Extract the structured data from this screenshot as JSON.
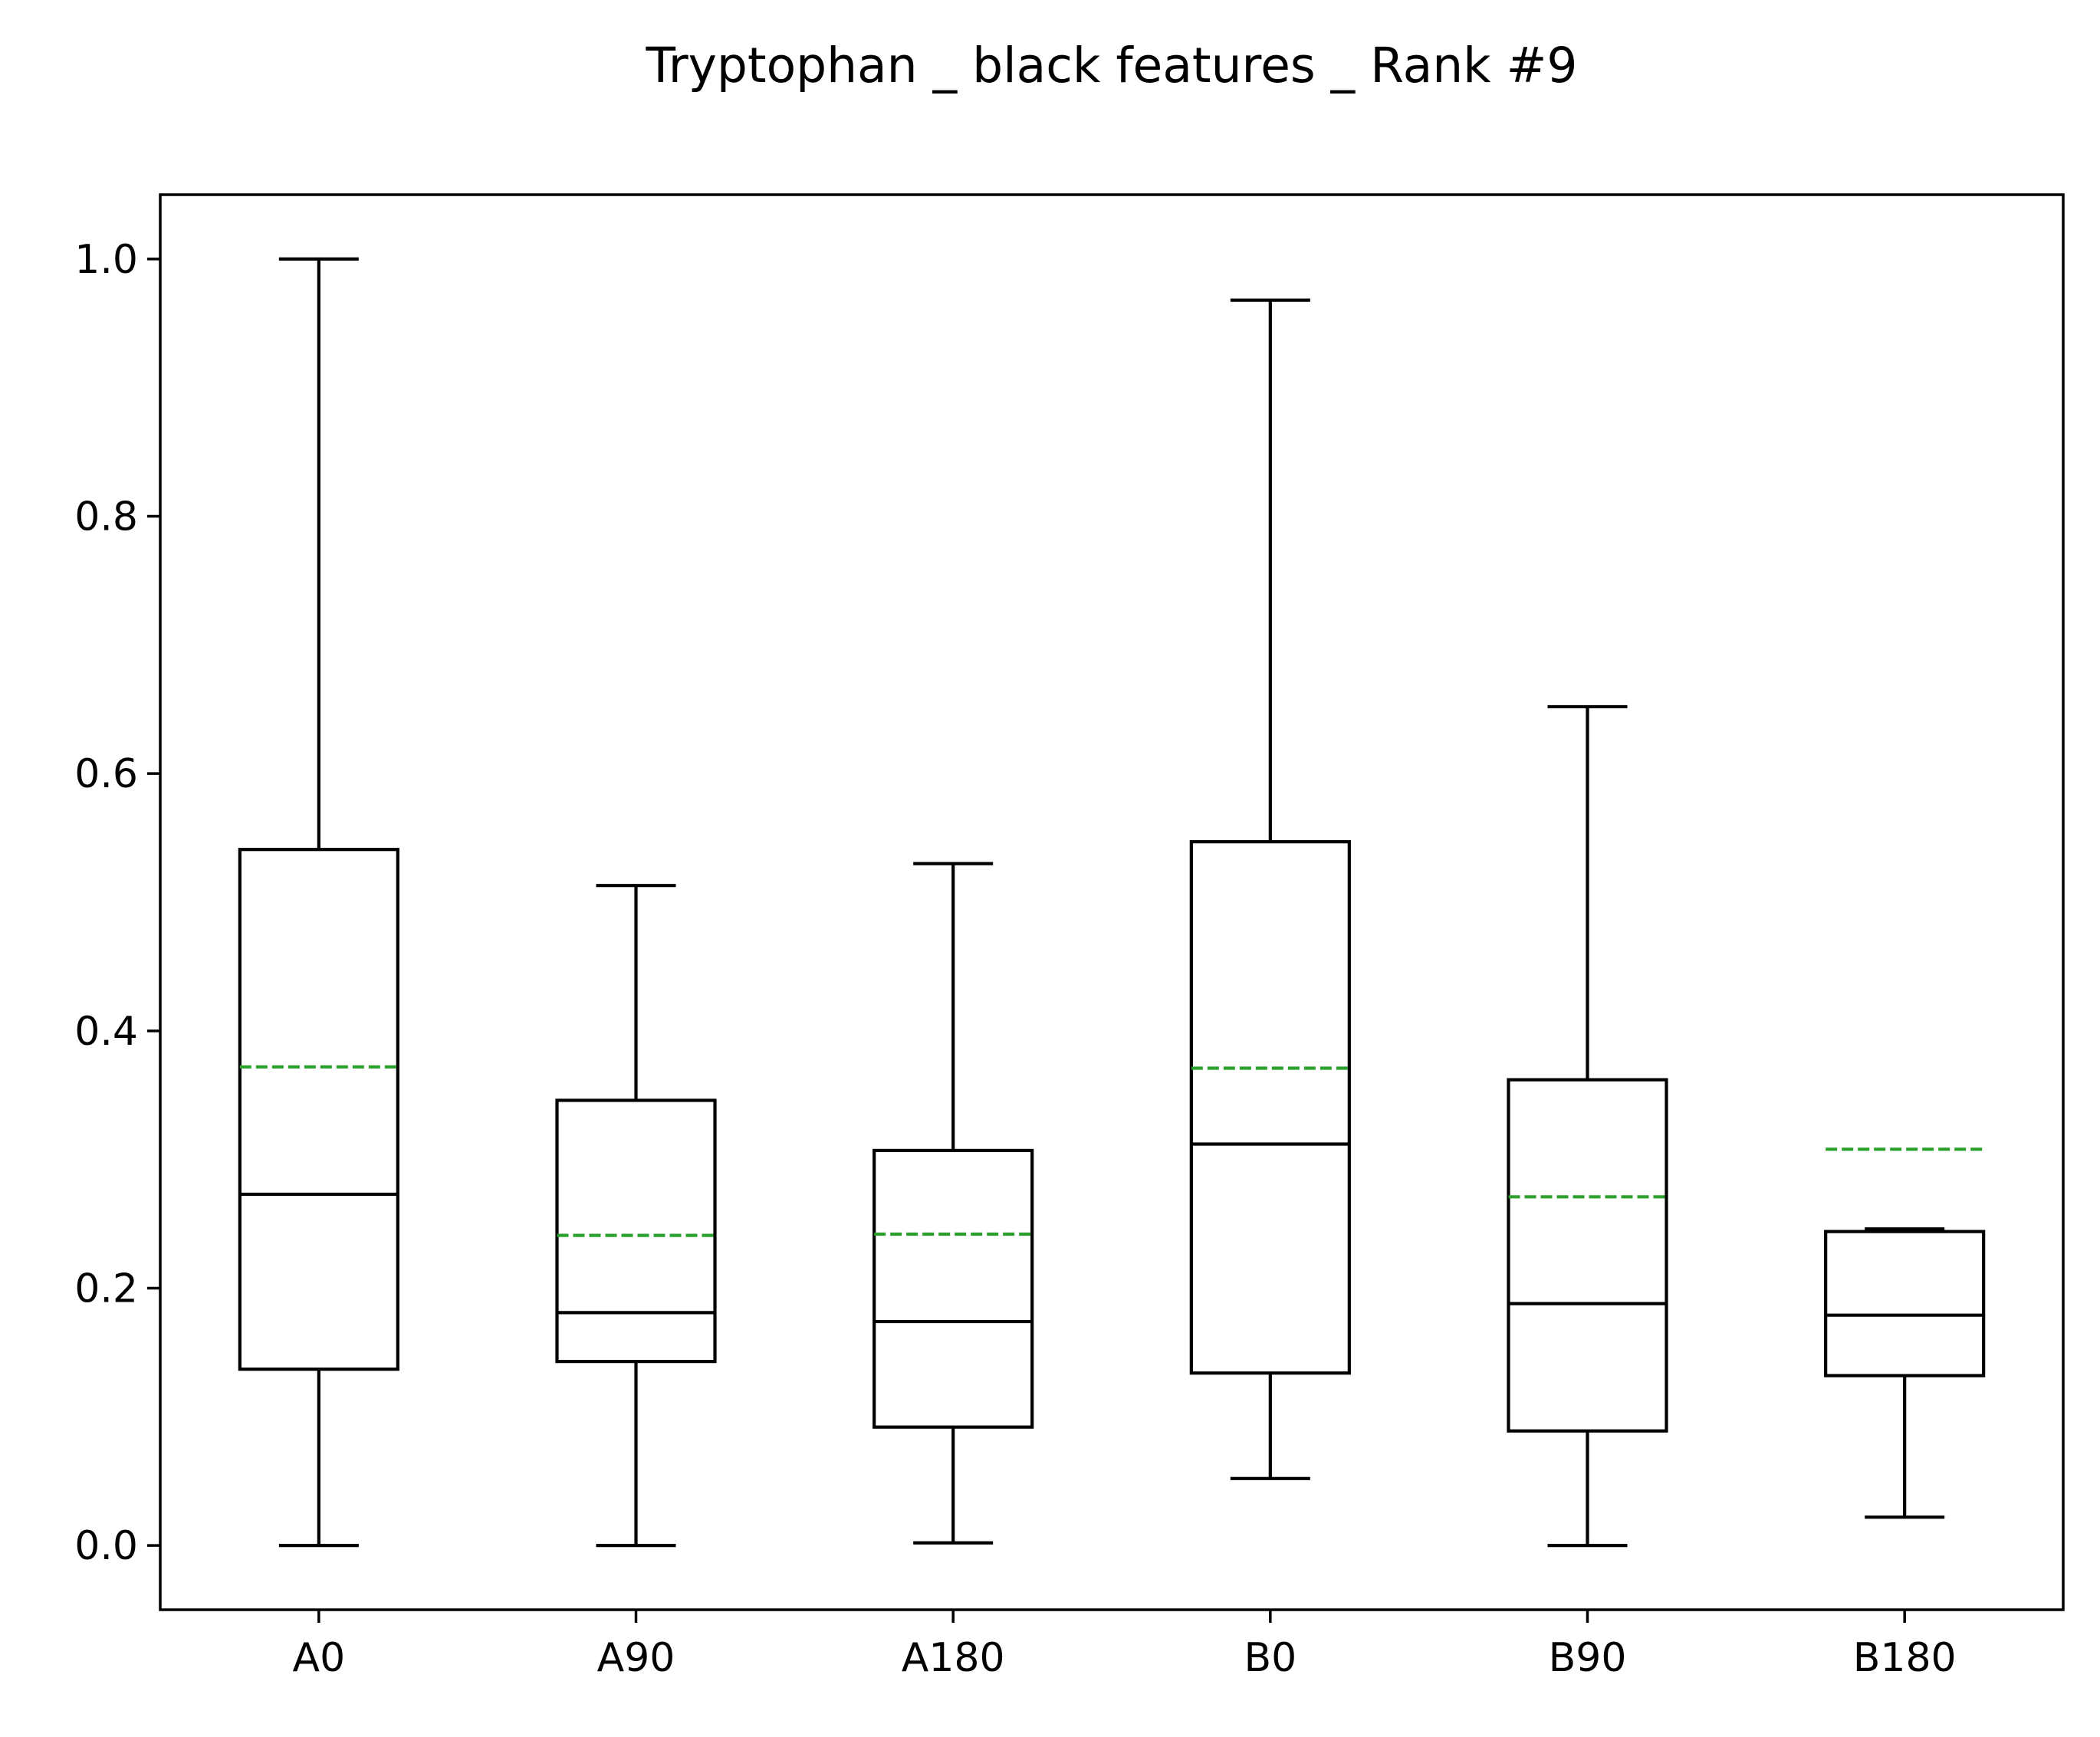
{
  "chart_data": {
    "type": "box",
    "title": "Tryptophan _ black features _ Rank #9",
    "xlabel": "",
    "ylabel": "",
    "ylim": [
      -0.05,
      1.05
    ],
    "yticks": [
      "0.0",
      "0.2",
      "0.4",
      "0.6",
      "0.8",
      "1.0"
    ],
    "grid": false,
    "categories": [
      "A0",
      "A90",
      "A180",
      "B0",
      "B90",
      "B180"
    ],
    "boxes": [
      {
        "label": "A0",
        "whisker_low": 0.0,
        "q1": 0.137,
        "median": 0.273,
        "q3": 0.541,
        "whisker_high": 1.0,
        "mean": 0.372
      },
      {
        "label": "A90",
        "whisker_low": 0.0,
        "q1": 0.143,
        "median": 0.181,
        "q3": 0.346,
        "whisker_high": 0.513,
        "mean": 0.241
      },
      {
        "label": "A180",
        "whisker_low": 0.002,
        "q1": 0.092,
        "median": 0.174,
        "q3": 0.307,
        "whisker_high": 0.53,
        "mean": 0.242
      },
      {
        "label": "B0",
        "whisker_low": 0.052,
        "q1": 0.134,
        "median": 0.312,
        "q3": 0.547,
        "whisker_high": 0.968,
        "mean": 0.371
      },
      {
        "label": "B90",
        "whisker_low": 0.0,
        "q1": 0.089,
        "median": 0.188,
        "q3": 0.362,
        "whisker_high": 0.652,
        "mean": 0.271
      },
      {
        "label": "B180",
        "whisker_low": 0.022,
        "q1": 0.132,
        "median": 0.179,
        "q3": 0.244,
        "whisker_high": 0.246,
        "mean": 0.308
      }
    ],
    "colors": {
      "box": "#000000",
      "mean_line": "#2ca02c",
      "background": "#ffffff"
    }
  }
}
